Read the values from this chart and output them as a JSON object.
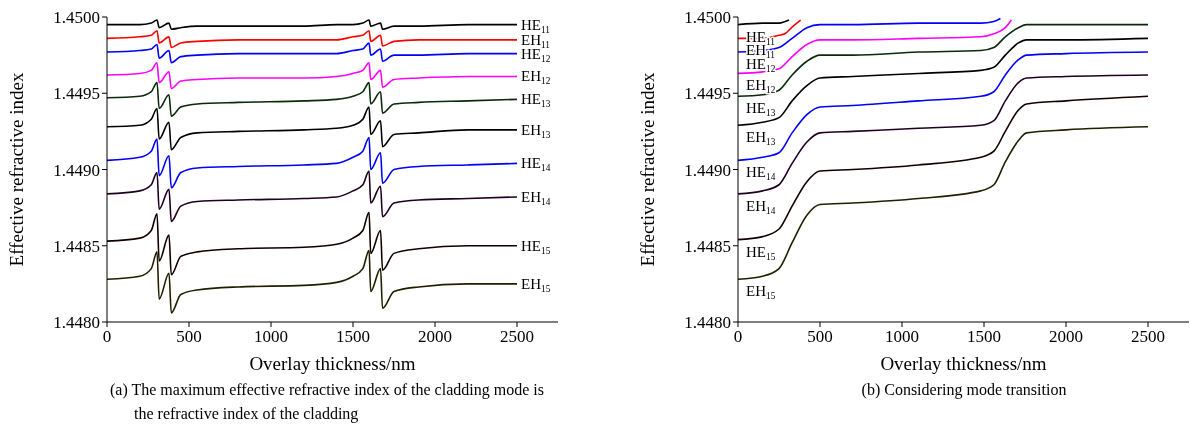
{
  "chart_data": [
    {
      "type": "line",
      "xlabel": "Overlay thickness/nm",
      "ylabel": "Effective refractive index",
      "marker": "none",
      "xlim": [
        0,
        2750
      ],
      "xticks": [
        0,
        500,
        1000,
        1500,
        2000,
        2500
      ],
      "ylim": [
        1.448,
        1.45
      ],
      "yticks": [
        {
          "value": 1.448,
          "label": "1.4480"
        },
        {
          "value": 1.4485,
          "label": "1.4485"
        },
        {
          "value": 1.449,
          "label": "1.4490"
        },
        {
          "value": 1.4495,
          "label": "1.4495"
        },
        {
          "value": 1.45,
          "label": "1.4500"
        }
      ],
      "annotations": [
        "(a) The maximum effective refractive index of the cladding mode is the refractive index of the cladding"
      ],
      "x": [
        0,
        200,
        270,
        305,
        318,
        378,
        392,
        450,
        550,
        800,
        1200,
        1400,
        1500,
        1560,
        1598,
        1608,
        1668,
        1680,
        1750,
        1900,
        2200,
        2500
      ],
      "series": [
        {
          "name": "HE$_{11}$",
          "color": "#000000",
          "values": [
            1.44995,
            1.44995,
            1.44996,
            1.44998,
            1.44993,
            1.44996,
            1.44992,
            1.44993,
            1.44994,
            1.44994,
            1.44994,
            1.44995,
            1.44995,
            1.44996,
            1.44998,
            1.44994,
            1.44996,
            1.44992,
            1.44994,
            1.44994,
            1.44995,
            1.44995
          ]
        },
        {
          "name": "EH$_{11}$",
          "color": "#ff0000",
          "values": [
            1.44986,
            1.44987,
            1.44988,
            1.44991,
            1.44983,
            1.44987,
            1.4498,
            1.44983,
            1.44984,
            1.44985,
            1.44985,
            1.44985,
            1.44987,
            1.44988,
            1.44991,
            1.44984,
            1.44988,
            1.44981,
            1.44984,
            1.44985,
            1.44985,
            1.44985
          ]
        },
        {
          "name": "HE$_{12}$",
          "color": "#0000ff",
          "values": [
            1.44977,
            1.44978,
            1.44979,
            1.44982,
            1.44973,
            1.44978,
            1.4497,
            1.44974,
            1.44975,
            1.44976,
            1.44976,
            1.44976,
            1.44978,
            1.44979,
            1.44983,
            1.44975,
            1.44979,
            1.44971,
            1.44975,
            1.44975,
            1.44976,
            1.44976
          ]
        },
        {
          "name": "EH$_{12}$",
          "color": "#ff00ff",
          "values": [
            1.44962,
            1.44963,
            1.44965,
            1.4497,
            1.44957,
            1.44964,
            1.44953,
            1.44958,
            1.44959,
            1.4496,
            1.4496,
            1.44961,
            1.44963,
            1.44965,
            1.4497,
            1.44959,
            1.44965,
            1.44954,
            1.44959,
            1.4496,
            1.44961,
            1.44961
          ]
        },
        {
          "name": "HE$_{13}$",
          "color": "#0a2a0a",
          "values": [
            1.44947,
            1.44948,
            1.44951,
            1.44957,
            1.4494,
            1.44949,
            1.44935,
            1.44941,
            1.44943,
            1.44944,
            1.44945,
            1.44946,
            1.44948,
            1.44951,
            1.44957,
            1.44943,
            1.44951,
            1.44937,
            1.44943,
            1.44944,
            1.44945,
            1.44946
          ]
        },
        {
          "name": "EH$_{13}$",
          "color": "#000000",
          "values": [
            1.44928,
            1.44929,
            1.44933,
            1.4494,
            1.4492,
            1.44931,
            1.44913,
            1.44921,
            1.44924,
            1.44925,
            1.44926,
            1.44927,
            1.44929,
            1.44933,
            1.44941,
            1.44923,
            1.44932,
            1.44915,
            1.44923,
            1.44924,
            1.44926,
            1.44926
          ]
        },
        {
          "name": "HE$_{14}$",
          "color": "#0000ff",
          "values": [
            1.44906,
            1.44908,
            1.44912,
            1.4492,
            1.44896,
            1.44909,
            1.44888,
            1.44898,
            1.44901,
            1.44902,
            1.44903,
            1.44904,
            1.44908,
            1.44912,
            1.44921,
            1.449,
            1.44911,
            1.44891,
            1.449,
            1.44902,
            1.44903,
            1.44904
          ]
        },
        {
          "name": "EH$_{14}$",
          "color": "#200020",
          "values": [
            1.44884,
            1.44886,
            1.4489,
            1.44898,
            1.44874,
            1.44887,
            1.44866,
            1.44876,
            1.44879,
            1.4488,
            1.44881,
            1.44882,
            1.44886,
            1.4489,
            1.44899,
            1.44878,
            1.44889,
            1.44869,
            1.44878,
            1.4488,
            1.44881,
            1.44882
          ]
        },
        {
          "name": "HE$_{15}$",
          "color": "#100000",
          "values": [
            1.44853,
            1.44855,
            1.4486,
            1.44871,
            1.4484,
            1.44857,
            1.44831,
            1.44843,
            1.44846,
            1.44848,
            1.44849,
            1.44851,
            1.44855,
            1.4486,
            1.44872,
            1.44845,
            1.4486,
            1.44834,
            1.44845,
            1.44848,
            1.4485,
            1.4485
          ]
        },
        {
          "name": "EH$_{15}$",
          "color": "#202000",
          "values": [
            1.44828,
            1.4483,
            1.44835,
            1.44846,
            1.44815,
            1.44832,
            1.44806,
            1.44818,
            1.44821,
            1.44823,
            1.44824,
            1.44826,
            1.4483,
            1.44835,
            1.44847,
            1.4482,
            1.44835,
            1.44809,
            1.4482,
            1.44823,
            1.44825,
            1.44825
          ]
        }
      ]
    },
    {
      "type": "line",
      "xlabel": "Overlay thickness/nm",
      "ylabel": "Effective refractive index",
      "marker": "none",
      "xlim": [
        0,
        2750
      ],
      "xticks": [
        0,
        500,
        1000,
        1500,
        2000,
        2500
      ],
      "ylim": [
        1.448,
        1.45
      ],
      "yticks": [
        {
          "value": 1.448,
          "label": "1.4480"
        },
        {
          "value": 1.4485,
          "label": "1.4485"
        },
        {
          "value": 1.449,
          "label": "1.4490"
        },
        {
          "value": 1.4495,
          "label": "1.4495"
        },
        {
          "value": 1.45,
          "label": "1.4500"
        }
      ],
      "annotations": [
        "(b) Considering mode transition"
      ],
      "series": [
        {
          "name": "HE$_{11}$",
          "color": "#000000",
          "x": [
            0,
            150,
            250,
            311
          ],
          "values": [
            1.44995,
            1.44996,
            1.44996,
            1.44998
          ]
        },
        {
          "name": "EH$_{11}$",
          "color": "#ff0000",
          "x": [
            0,
            150,
            250,
            285,
            336,
            382
          ],
          "values": [
            1.44986,
            1.44986,
            1.44988,
            1.44989,
            1.44994,
            1.44998
          ]
        },
        {
          "name": "HE$_{12}$",
          "color": "#0000ff",
          "x": [
            0,
            150,
            250,
            330,
            420,
            500,
            700,
            1100,
            1480,
            1560,
            1600
          ],
          "values": [
            1.44977,
            1.44978,
            1.4498,
            1.44986,
            1.44993,
            1.44995,
            1.44995,
            1.44996,
            1.44996,
            1.44997,
            1.44999
          ]
        },
        {
          "name": "EH$_{12}$",
          "color": "#ff00ff",
          "x": [
            0,
            150,
            250,
            330,
            420,
            500,
            700,
            1100,
            1480,
            1560,
            1630,
            1667
          ],
          "values": [
            1.44963,
            1.44964,
            1.44966,
            1.44974,
            1.44982,
            1.44985,
            1.44985,
            1.44986,
            1.44987,
            1.44989,
            1.44993,
            1.44998
          ]
        },
        {
          "name": "HE$_{13}$",
          "color": "#0a2a0a",
          "x": [
            0,
            150,
            250,
            330,
            420,
            500,
            700,
            1100,
            1480,
            1560,
            1630,
            1710,
            1760,
            2000,
            2500
          ],
          "values": [
            1.44948,
            1.44949,
            1.44952,
            1.44962,
            1.44971,
            1.44975,
            1.44975,
            1.44977,
            1.44978,
            1.4498,
            1.44987,
            1.44993,
            1.44995,
            1.44995,
            1.44995
          ]
        },
        {
          "name": "EH$_{13}$",
          "color": "#000000",
          "x": [
            0,
            150,
            250,
            330,
            420,
            500,
            700,
            1100,
            1480,
            1560,
            1630,
            1710,
            1760,
            2000,
            2500
          ],
          "values": [
            1.44929,
            1.44931,
            1.44934,
            1.44945,
            1.44955,
            1.4496,
            1.44961,
            1.44963,
            1.44965,
            1.44967,
            1.44975,
            1.44983,
            1.44985,
            1.44985,
            1.44986
          ]
        },
        {
          "name": "HE$_{14}$",
          "color": "#0000ff",
          "x": [
            0,
            150,
            250,
            330,
            420,
            500,
            700,
            1100,
            1480,
            1560,
            1630,
            1710,
            1760,
            2000,
            2500
          ],
          "values": [
            1.44906,
            1.44908,
            1.44911,
            1.44924,
            1.44936,
            1.44941,
            1.44942,
            1.44945,
            1.44948,
            1.44951,
            1.44962,
            1.44972,
            1.44975,
            1.44976,
            1.44977
          ]
        },
        {
          "name": "EH$_{14}$",
          "color": "#200020",
          "x": [
            0,
            150,
            250,
            330,
            420,
            500,
            700,
            1100,
            1480,
            1560,
            1630,
            1710,
            1760,
            2000,
            2500
          ],
          "values": [
            1.44884,
            1.44886,
            1.4489,
            1.44904,
            1.44918,
            1.44924,
            1.44925,
            1.44927,
            1.44929,
            1.44932,
            1.44945,
            1.44957,
            1.4496,
            1.44961,
            1.44962
          ]
        },
        {
          "name": "HE$_{15}$",
          "color": "#100000",
          "x": [
            0,
            150,
            250,
            330,
            420,
            500,
            700,
            1100,
            1480,
            1560,
            1630,
            1710,
            1760,
            2000,
            2500
          ],
          "values": [
            1.44854,
            1.44856,
            1.44861,
            1.44876,
            1.44892,
            1.44899,
            1.449,
            1.44903,
            1.44908,
            1.44912,
            1.44925,
            1.44939,
            1.44943,
            1.44945,
            1.44948
          ]
        },
        {
          "name": "EH$_{15}$",
          "color": "#202000",
          "x": [
            0,
            150,
            250,
            330,
            420,
            500,
            700,
            1100,
            1480,
            1560,
            1630,
            1710,
            1760,
            2000,
            2500
          ],
          "values": [
            1.44828,
            1.4483,
            1.44835,
            1.44852,
            1.4487,
            1.44877,
            1.44878,
            1.44881,
            1.44886,
            1.4489,
            1.44905,
            1.44919,
            1.44924,
            1.44926,
            1.44928
          ]
        }
      ]
    }
  ]
}
